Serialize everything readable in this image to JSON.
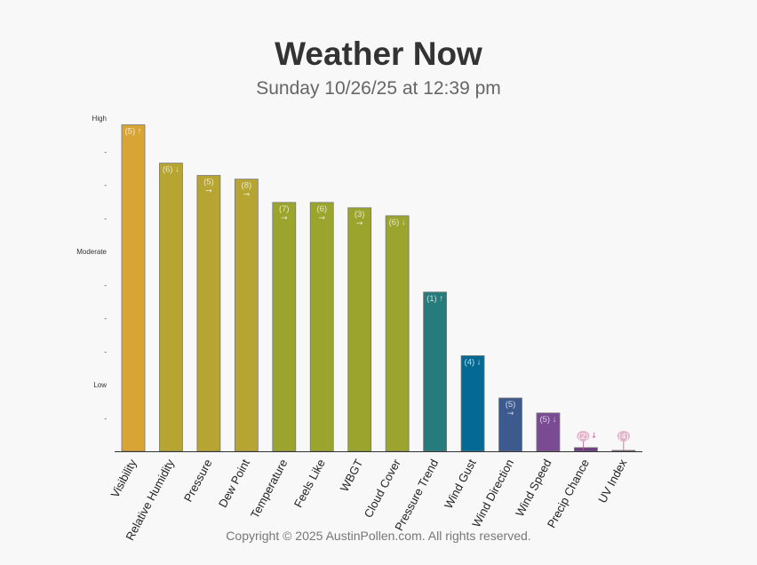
{
  "header": {
    "title": "Weather Now",
    "subtitle": "Sunday 10/26/25 at 12:39 pm"
  },
  "footer": {
    "copyright": "Copyright © 2025 AustinPollen.com.  All rights reserved."
  },
  "chart_data": {
    "type": "bar",
    "ylim": [
      0,
      10
    ],
    "y_ticks": [
      {
        "value": 1,
        "label": "-"
      },
      {
        "value": 2,
        "label": "Low"
      },
      {
        "value": 3,
        "label": "-"
      },
      {
        "value": 4,
        "label": "-"
      },
      {
        "value": 5,
        "label": "-"
      },
      {
        "value": 6,
        "label": "Moderate"
      },
      {
        "value": 7,
        "label": "-"
      },
      {
        "value": 8,
        "label": "-"
      },
      {
        "value": 9,
        "label": "-"
      },
      {
        "value": 10,
        "label": "High"
      }
    ],
    "grid": false,
    "bars": [
      {
        "category": "Visibility",
        "value": 9.8,
        "label": "(5)",
        "trend": "↑",
        "color": "#d8a435"
      },
      {
        "category": "Relative Humidity",
        "value": 8.65,
        "label": "(6)",
        "trend": "↓",
        "color": "#b6a532"
      },
      {
        "category": "Pressure",
        "value": 8.28,
        "label": "(5)",
        "trend": "→",
        "color": "#b6a532"
      },
      {
        "category": "Dew Point",
        "value": 8.17,
        "label": "(8)",
        "trend": "→",
        "color": "#b6a532"
      },
      {
        "category": "Temperature",
        "value": 7.47,
        "label": "(7)",
        "trend": "→",
        "color": "#9ba52e"
      },
      {
        "category": "Feels Like",
        "value": 7.47,
        "label": "(6)",
        "trend": "→",
        "color": "#9ba52e"
      },
      {
        "category": "WBGT",
        "value": 7.31,
        "label": "(3)",
        "trend": "→",
        "color": "#9ba52e"
      },
      {
        "category": "Cloud Cover",
        "value": 7.07,
        "label": "(6)",
        "trend": "↓",
        "color": "#9ba52e"
      },
      {
        "category": "Pressure Trend",
        "value": 4.78,
        "label": "(1)",
        "trend": "↑",
        "color": "#267b7c"
      },
      {
        "category": "Wind Gust",
        "value": 2.87,
        "label": "(4)",
        "trend": "↓",
        "color": "#046a94"
      },
      {
        "category": "Wind Direction",
        "value": 1.6,
        "label": "(5)",
        "trend": "→",
        "color": "#3c5a8e"
      },
      {
        "category": "Wind Speed",
        "value": 1.15,
        "label": "(5)",
        "trend": "↓",
        "color": "#7a4a92"
      },
      {
        "category": "Precip Chance",
        "value": 0.11,
        "label": "(2)",
        "trend": "↓",
        "color": "#6c3f85"
      },
      {
        "category": "UV Index",
        "value": 0.02,
        "label": "(4)",
        "trend": "",
        "color": "#9b3f7a"
      }
    ]
  }
}
